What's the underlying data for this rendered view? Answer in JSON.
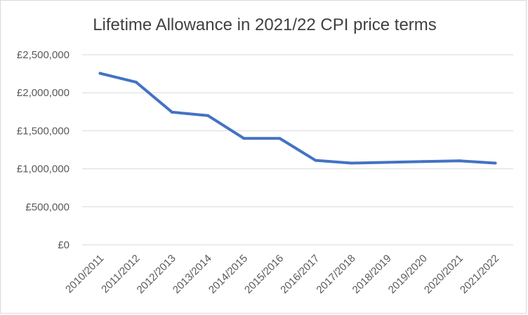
{
  "chart_data": {
    "type": "line",
    "title": "Lifetime Allowance in 2021/22 CPI price terms",
    "xlabel": "",
    "ylabel": "",
    "categories": [
      "2010/2011",
      "2011/2012",
      "2012/2013",
      "2013/2014",
      "2014/2015",
      "2015/2016",
      "2016/2017",
      "2017/2018",
      "2018/2019",
      "2019/2020",
      "2020/2021",
      "2021/2022"
    ],
    "series": [
      {
        "values": [
          2255000,
          2140000,
          1745000,
          1700000,
          1400000,
          1400000,
          1110000,
          1075000,
          1085000,
          1095000,
          1105000,
          1075000
        ],
        "color": "#4472c4"
      }
    ],
    "ylim": [
      0,
      2500000
    ],
    "yticks": [
      0,
      500000,
      1000000,
      1500000,
      2000000,
      2500000
    ],
    "ytick_labels": [
      "£0",
      "£500,000",
      "£1,000,000",
      "£1,500,000",
      "£2,000,000",
      "£2,500,000"
    ],
    "grid": true,
    "legend": "none"
  }
}
